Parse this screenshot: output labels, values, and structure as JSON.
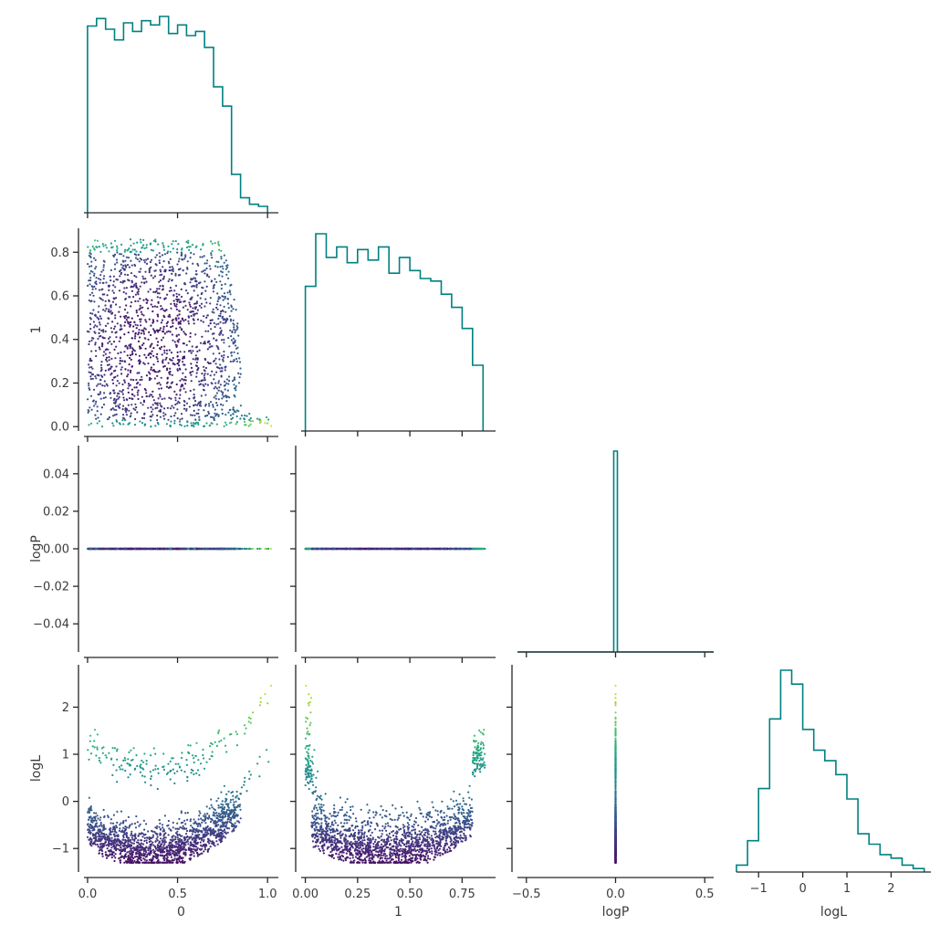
{
  "chart_data": {
    "type": "scatter",
    "layout": "corner pair plot (lower triangle scatter, diagonal histograms)",
    "variables": [
      "0",
      "1",
      "logP",
      "logL"
    ],
    "axis_labels": {
      "x": [
        "0",
        "1",
        "logP",
        "logL"
      ],
      "y": [
        "",
        "1",
        "logP",
        "logL"
      ]
    },
    "colormap": "viridis",
    "colors": {
      "histogram": "#008080",
      "axis": "#262626",
      "text": "#3b3b3b"
    },
    "ranges": {
      "0": [
        -0.02,
        1.06
      ],
      "1": [
        -0.02,
        0.91
      ],
      "logP": [
        -0.055,
        0.055
      ],
      "logL": [
        -1.5,
        2.9
      ]
    },
    "ticks": {
      "0": [
        "0.0",
        "0.5",
        "1.0"
      ],
      "1": [
        "0.00",
        "0.25",
        "0.50",
        "0.75"
      ],
      "1_y": [
        "0.0",
        "0.2",
        "0.4",
        "0.6",
        "0.8"
      ],
      "logP": [
        "−0.04",
        "−0.02",
        "0.00",
        "0.02",
        "0.04"
      ],
      "logP_x": [
        "−0.5",
        "0.0",
        "0.5"
      ],
      "logL": [
        "−1",
        "0",
        "1",
        "2"
      ]
    },
    "tick_values": {
      "0": [
        0,
        0.5,
        1.0
      ],
      "1": [
        0,
        0.25,
        0.5,
        0.75
      ],
      "1_y": [
        0,
        0.2,
        0.4,
        0.6,
        0.8
      ],
      "logP": [
        -0.04,
        -0.02,
        0,
        0.02,
        0.04
      ],
      "logP_x": [
        -0.5,
        0,
        0.5
      ],
      "logL": [
        -1,
        0,
        1,
        2
      ]
    },
    "histograms": {
      "0": {
        "bins": [
          0.0,
          0.05,
          0.1,
          0.15,
          0.2,
          0.25,
          0.3,
          0.35,
          0.4,
          0.45,
          0.5,
          0.55,
          0.6,
          0.65,
          0.7,
          0.75,
          0.8,
          0.85,
          0.9,
          0.95,
          1.0
        ],
        "counts": [
          175,
          182,
          172,
          162,
          178,
          170,
          180,
          176,
          184,
          168,
          176,
          166,
          170,
          155,
          118,
          100,
          36,
          14,
          8,
          6
        ]
      },
      "1": {
        "bins": [
          0.0,
          0.05,
          0.1,
          0.15,
          0.2,
          0.25,
          0.3,
          0.35,
          0.4,
          0.45,
          0.5,
          0.55,
          0.6,
          0.65,
          0.7,
          0.75,
          0.8,
          0.85
        ],
        "counts": [
          110,
          150,
          132,
          140,
          128,
          138,
          130,
          140,
          120,
          132,
          122,
          116,
          114,
          104,
          94,
          78,
          50
        ]
      },
      "logP": {
        "bins": [
          -0.55,
          -0.05,
          -0.01,
          0.01,
          0.05,
          0.55
        ],
        "counts": [
          0,
          0,
          200,
          0,
          0
        ]
      },
      "logL": {
        "bins": [
          -1.5,
          -1.25,
          -1.0,
          -0.75,
          -0.5,
          -0.25,
          0.0,
          0.25,
          0.5,
          0.75,
          1.0,
          1.25,
          1.5,
          1.75,
          2.0,
          2.25,
          2.5,
          2.75
        ],
        "counts": [
          4,
          18,
          48,
          88,
          116,
          108,
          82,
          70,
          64,
          56,
          42,
          22,
          16,
          10,
          8,
          4,
          2
        ]
      }
    },
    "scatter_sample_size": 1800
  }
}
